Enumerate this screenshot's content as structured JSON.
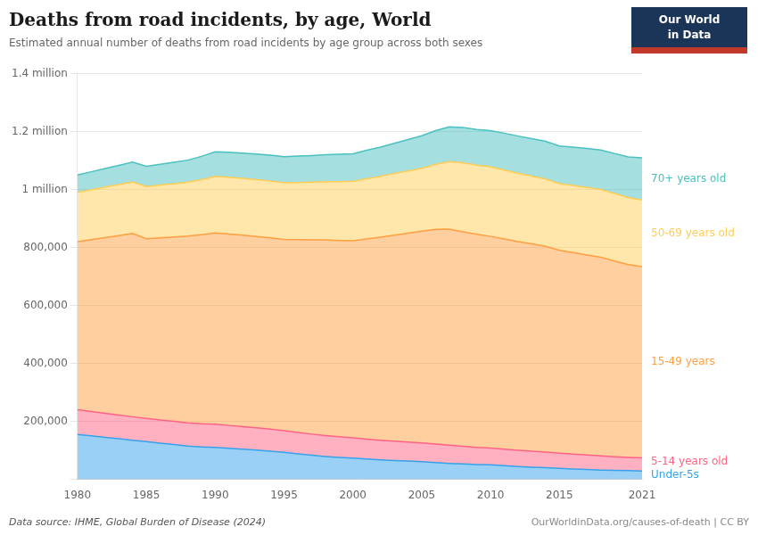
{
  "chart_data": {
    "type": "area",
    "title": "Deaths from road incidents, by age, World",
    "subtitle": "Estimated annual number of deaths from road incidents by age group across both sexes",
    "annotations": [
      "Data source: IHME, Global Burden of Disease (2024)",
      "OurWorldinData.org/causes-of-death | CC BY",
      "Our World",
      "in Data"
    ],
    "x": [
      1980,
      1981,
      1982,
      1983,
      1984,
      1985,
      1986,
      1987,
      1988,
      1989,
      1990,
      1991,
      1992,
      1993,
      1994,
      1995,
      1996,
      1997,
      1998,
      1999,
      2000,
      2001,
      2002,
      2003,
      2004,
      2005,
      2006,
      2007,
      2008,
      2009,
      2010,
      2011,
      2012,
      2013,
      2014,
      2015,
      2016,
      2017,
      2018,
      2019,
      2020,
      2021
    ],
    "series": [
      {
        "name": "Under-5s",
        "values": [
          155000,
          150000,
          145000,
          140000,
          135000,
          130000,
          125000,
          120000,
          115000,
          112000,
          110000,
          107000,
          104000,
          101000,
          97000,
          93000,
          88000,
          83000,
          79000,
          76000,
          73000,
          70000,
          67000,
          65000,
          63000,
          61000,
          58000,
          55000,
          53000,
          51000,
          50000,
          47000,
          44000,
          42000,
          40000,
          38000,
          36000,
          34000,
          32000,
          31000,
          30000,
          29000
        ]
      },
      {
        "name": "5-14 years old",
        "values": [
          85000,
          84000,
          83000,
          82000,
          81000,
          80000,
          80000,
          80000,
          80000,
          80000,
          80000,
          79000,
          78000,
          77000,
          76000,
          75000,
          74000,
          73000,
          72000,
          71000,
          70000,
          69000,
          68000,
          67000,
          66000,
          65000,
          64000,
          63000,
          61000,
          59000,
          58000,
          57000,
          56000,
          55000,
          54000,
          52000,
          51000,
          50000,
          49000,
          47000,
          46000,
          45000
        ]
      },
      {
        "name": "15-49 years",
        "values": [
          580000,
          593000,
          606000,
          619000,
          632000,
          620000,
          628000,
          636000,
          644000,
          652000,
          660000,
          660000,
          660000,
          660000,
          660000,
          660000,
          665000,
          670000,
          675000,
          677000,
          680000,
          690000,
          700000,
          710000,
          720000,
          730000,
          740000,
          745000,
          740000,
          735000,
          730000,
          725000,
          720000,
          715000,
          710000,
          700000,
          695000,
          690000,
          685000,
          675000,
          665000,
          660000
        ]
      },
      {
        "name": "50-69 years old",
        "values": [
          170000,
          172000,
          174000,
          176000,
          178000,
          180000,
          182000,
          184000,
          186000,
          190000,
          195000,
          196000,
          196000,
          196000,
          196000,
          195000,
          197000,
          199000,
          201000,
          203000,
          205000,
          208000,
          210000,
          213000,
          215000,
          217000,
          225000,
          233000,
          238000,
          239000,
          240000,
          238000,
          236000,
          234000,
          232000,
          230000,
          232000,
          233000,
          234000,
          233000,
          231000,
          230000
        ]
      },
      {
        "name": "70+ years old",
        "values": [
          60000,
          62000,
          64000,
          66000,
          68000,
          70000,
          72000,
          74000,
          76000,
          80000,
          85000,
          86000,
          87000,
          88000,
          89000,
          90000,
          91000,
          92000,
          93000,
          94000,
          95000,
          98000,
          101000,
          104000,
          108000,
          112000,
          116000,
          120000,
          122000,
          123000,
          125000,
          127000,
          128000,
          129000,
          130000,
          130000,
          132000,
          134000,
          136000,
          138000,
          140000,
          145000
        ]
      }
    ],
    "stacked": true,
    "xlim": [
      1980,
      2021
    ],
    "xticks": [
      1980,
      1985,
      1990,
      1995,
      2000,
      2005,
      2010,
      2015,
      2021
    ],
    "ylim": [
      0,
      1400000
    ],
    "yticks": [
      {
        "value": 0,
        "label": null
      },
      {
        "value": 200000,
        "label": "200,000"
      },
      {
        "value": 400000,
        "label": "400,000"
      },
      {
        "value": 600000,
        "label": "600,000"
      },
      {
        "value": 800000,
        "label": "800,000"
      },
      {
        "value": 1000000,
        "label": "1 million"
      },
      {
        "value": 1200000,
        "label": "1.2 million"
      },
      {
        "value": 1400000,
        "label": "1.4 million"
      }
    ],
    "grid": "y"
  }
}
